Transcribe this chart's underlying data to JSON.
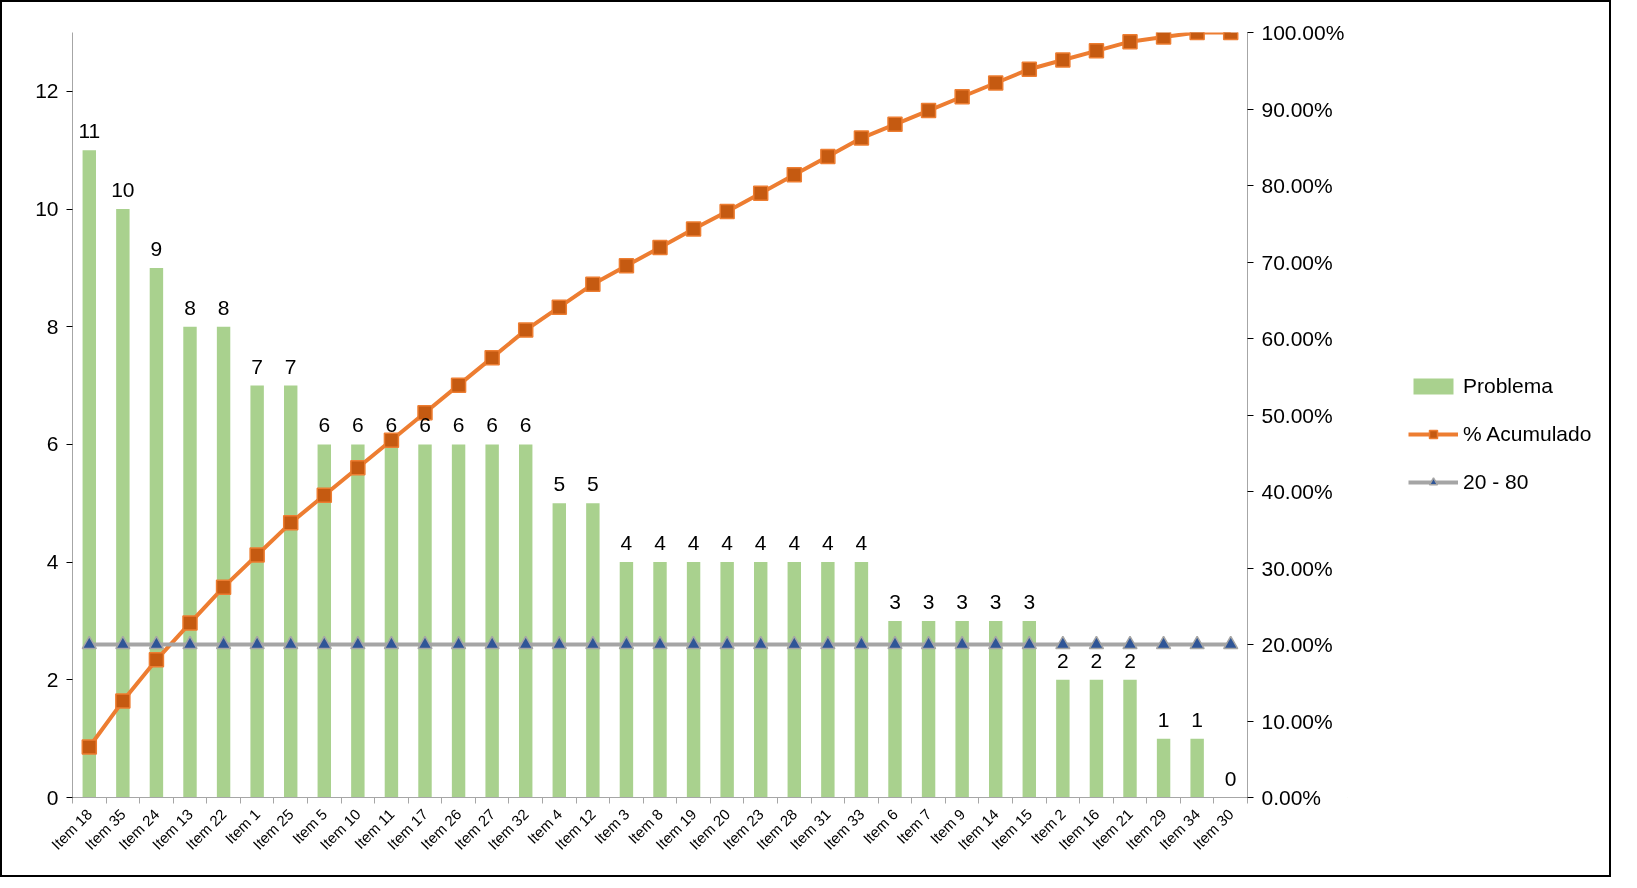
{
  "chart_data": {
    "type": "bar",
    "categories": [
      "Item 18",
      "Item 35",
      "Item 24",
      "Item 13",
      "Item 22",
      "Item 1",
      "Item 25",
      "Item 5",
      "Item 10",
      "Item 11",
      "Item 17",
      "Item 26",
      "Item 27",
      "Item 32",
      "Item 4",
      "Item 12",
      "Item 3",
      "Item 8",
      "Item 19",
      "Item 20",
      "Item 23",
      "Item 28",
      "Item 31",
      "Item 33",
      "Item 6",
      "Item 7",
      "Item 9",
      "Item 14",
      "Item 15",
      "Item 2",
      "Item 16",
      "Item 21",
      "Item 29",
      "Item 34",
      "Item 30"
    ],
    "series": [
      {
        "name": "Problema",
        "color": "#a9d18e",
        "values": [
          11,
          10,
          9,
          8,
          8,
          7,
          7,
          6,
          6,
          6,
          6,
          6,
          6,
          6,
          5,
          5,
          4,
          4,
          4,
          4,
          4,
          4,
          4,
          4,
          3,
          3,
          3,
          3,
          3,
          2,
          2,
          2,
          1,
          1,
          0
        ],
        "value_labels": [
          "11",
          "10",
          "9",
          "8",
          "8",
          "7",
          "7",
          "6",
          "6",
          "6",
          "6",
          "6",
          "6",
          "6",
          "5",
          "5",
          "4",
          "4",
          "4",
          "4",
          "4",
          "4",
          "4",
          "4",
          "3",
          "3",
          "3",
          "3",
          "3",
          "2",
          "2",
          "2",
          "1",
          "1",
          "0"
        ]
      },
      {
        "name": "% Acumulado",
        "type": "line",
        "axis": "y2",
        "marker": "square",
        "color": "#ed7d31",
        "colors": [
          "#c55a11",
          "#c55a11",
          "#c55a11",
          "#c55a11",
          "#c55a11",
          "#c55a11",
          "#c55a11",
          "#c55a11",
          "#c55a11",
          "#c55a11",
          "#c55a11",
          "#c55a11",
          "#c55a11",
          "#c55a11",
          "#c55a11",
          "#c55a11",
          "#c55a11",
          "#c55a11",
          "#c55a11",
          "#c55a11",
          "#c55a11",
          "#c55a11",
          "#c55a11",
          "#c55a11",
          "#c55a11",
          "#c55a11",
          "#c55a11",
          "#c55a11",
          "#c55a11",
          "#c55a11",
          "#c55a11",
          "#c55a11",
          "#c55a11",
          "#c55a11",
          "#c55a11"
        ],
        "values": [
          6.6,
          12.6,
          18.0,
          22.8,
          27.5,
          31.7,
          35.9,
          39.5,
          43.1,
          46.7,
          50.3,
          53.9,
          57.5,
          61.1,
          64.1,
          67.1,
          69.5,
          71.9,
          74.3,
          76.6,
          79.0,
          81.4,
          83.8,
          86.2,
          88.0,
          89.8,
          91.6,
          93.4,
          95.2,
          96.4,
          97.6,
          98.8,
          99.4,
          100,
          100
        ]
      },
      {
        "name": "20 - 80",
        "type": "line",
        "axis": "y2",
        "marker": "triangle",
        "color": "#a5a5a5",
        "colors": [
          "#2f5597",
          "#2f5597",
          "#2f5597",
          "#2f5597",
          "#2f5597",
          "#2f5597",
          "#2f5597",
          "#2f5597",
          "#2f5597",
          "#2f5597",
          "#2f5597",
          "#2f5597",
          "#2f5597",
          "#2f5597",
          "#2f5597",
          "#2f5597",
          "#2f5597",
          "#2f5597",
          "#2f5597",
          "#2f5597",
          "#2f5597",
          "#2f5597",
          "#2f5597",
          "#2f5597",
          "#2f5597",
          "#2f5597",
          "#2f5597",
          "#2f5597",
          "#2f5597",
          "#2f5597",
          "#2f5597",
          "#2f5597",
          "#2f5597",
          "#2f5597",
          "#2f5597"
        ],
        "values": [
          20,
          20,
          20,
          20,
          20,
          20,
          20,
          20,
          20,
          20,
          20,
          20,
          20,
          20,
          20,
          20,
          20,
          20,
          20,
          20,
          20,
          20,
          20,
          20,
          20,
          20,
          20,
          20,
          20,
          20,
          20,
          20,
          20,
          20,
          20
        ]
      }
    ],
    "ylim": [
      0,
      13
    ],
    "yticks": [
      0,
      2,
      4,
      6,
      8,
      10,
      12
    ],
    "y2lim": [
      0,
      100
    ],
    "y2ticks": [
      {
        "value": 0,
        "label": "0.00%"
      },
      {
        "value": 10,
        "label": "10.00%"
      },
      {
        "value": 20,
        "label": "20.00%"
      },
      {
        "value": 30,
        "label": "30.00%"
      },
      {
        "value": 40,
        "label": "40.00%"
      },
      {
        "value": 50,
        "label": "50.00%"
      },
      {
        "value": 60,
        "label": "60.00%"
      },
      {
        "value": 70,
        "label": "70.00%"
      },
      {
        "value": 80,
        "label": "80.00%"
      },
      {
        "value": 90,
        "label": "90.00%"
      },
      {
        "value": 100,
        "label": "100.00%"
      }
    ],
    "legend": "right"
  }
}
